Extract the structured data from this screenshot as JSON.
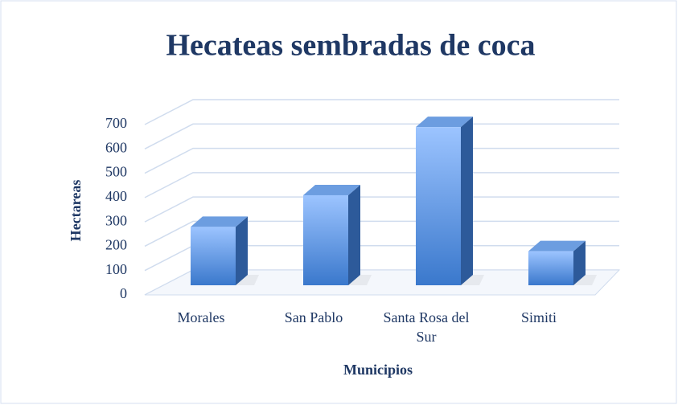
{
  "chart_data": {
    "type": "bar3d",
    "title": "Hecateas sembradas de coca",
    "x_label": "Municipios",
    "y_label": "Hectareas",
    "categories": [
      "Morales",
      "San Pablo",
      "Santa Rosa del Sur",
      "Simiti"
    ],
    "values": [
      240,
      370,
      650,
      140
    ],
    "color": "#4a86d8",
    "ylim": [
      0,
      700
    ],
    "yticks": [
      0,
      100,
      200,
      300,
      400,
      500,
      600,
      700
    ],
    "grid": true
  }
}
